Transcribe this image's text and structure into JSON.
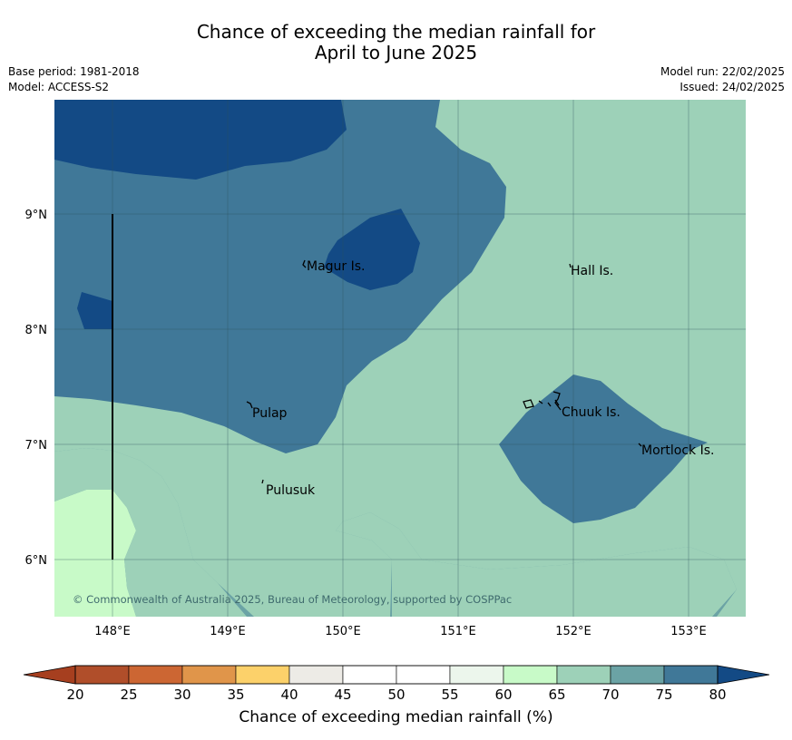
{
  "title": {
    "line1": "Chance of exceeding the median rainfall for",
    "line2": "April to June 2025"
  },
  "meta": {
    "base_period": "Base period: 1981-2018",
    "model": "Model: ACCESS-S2",
    "model_run": "Model run: 22/02/2025",
    "issued": "Issued: 24/02/2025"
  },
  "map": {
    "lon_range": [
      147.5,
      153.5
    ],
    "lat_range": [
      5.5,
      10.0
    ],
    "lon_ticks": [
      "148°E",
      "149°E",
      "150°E",
      "151°E",
      "152°E",
      "153°E"
    ],
    "lat_ticks": [
      "9°N",
      "8°N",
      "7°N",
      "6°N"
    ],
    "places": [
      {
        "name": "Magur Is.",
        "lon": 149.7,
        "lat": 8.55
      },
      {
        "name": "Hall Is.",
        "lon": 151.97,
        "lat": 8.51
      },
      {
        "name": "Pulap",
        "lon": 149.2,
        "lat": 7.3
      },
      {
        "name": "Chuuk Is.",
        "lon": 151.9,
        "lat": 7.3
      },
      {
        "name": "Mortlock Is.",
        "lon": 152.6,
        "lat": 6.97
      },
      {
        "name": "Pulusuk",
        "lon": 149.32,
        "lat": 6.6
      }
    ],
    "copyright": "© Commonwealth of Australia 2025, Bureau of Meteorology, supported by COSPPac"
  },
  "colorbar": {
    "ticks": [
      "20",
      "25",
      "30",
      "35",
      "40",
      "45",
      "50",
      "55",
      "60",
      "65",
      "70",
      "75",
      "80"
    ],
    "colors": [
      "#a63f1f",
      "#b04e2a",
      "#cc6633",
      "#e0954a",
      "#fcd16a",
      "#edebe6",
      "#ffffff",
      "#ffffff",
      "#ecf6ec",
      "#c8fac8",
      "#9dd1b8",
      "#6ba3a5",
      "#407898",
      "#134a85"
    ],
    "label": "Chance of exceeding median rainfall (%)"
  }
}
